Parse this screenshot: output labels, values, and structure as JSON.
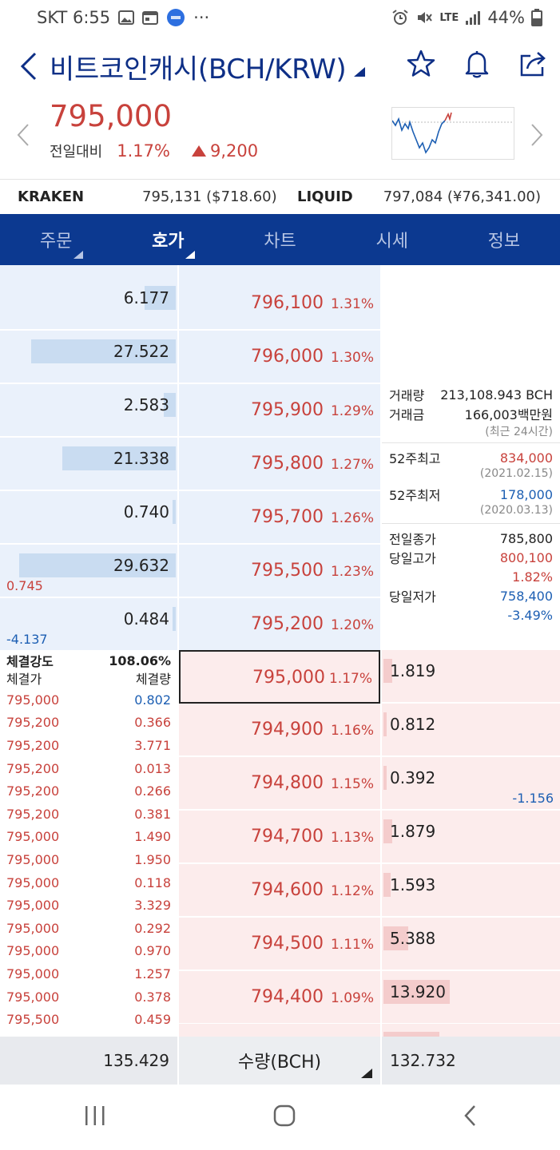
{
  "status_bar": {
    "carrier_time": "SKT 6:55",
    "dots": "···",
    "network": "LTE",
    "battery": "44%"
  },
  "title": {
    "name": "비트코인캐시(BCH/KRW)"
  },
  "price": {
    "current": "795,000",
    "change_label": "전일대비",
    "change_pct": "1.17%",
    "change_amt": "9,200"
  },
  "exchanges": [
    {
      "name": "KRAKEN",
      "value": "795,131 ($718.60)"
    },
    {
      "name": "LIQUID",
      "value": "797,084 (¥76,341.00)"
    }
  ],
  "tabs": [
    {
      "label": "주문"
    },
    {
      "label": "호가"
    },
    {
      "label": "차트"
    },
    {
      "label": "시세"
    },
    {
      "label": "정보"
    }
  ],
  "asks": [
    {
      "qty": "6.177",
      "price": "796,100",
      "pct": "1.31%",
      "fill": 0.18
    },
    {
      "qty": "27.522",
      "price": "796,000",
      "pct": "1.30%",
      "fill": 0.83
    },
    {
      "qty": "2.583",
      "price": "795,900",
      "pct": "1.29%",
      "fill": 0.07
    },
    {
      "qty": "21.338",
      "price": "795,800",
      "pct": "1.27%",
      "fill": 0.65
    },
    {
      "qty": "0.740",
      "price": "795,700",
      "pct": "1.26%",
      "fill": 0.02
    },
    {
      "qty": "29.632",
      "price": "795,500",
      "pct": "1.23%",
      "fill": 0.9,
      "diff": "0.745"
    },
    {
      "qty": "0.484",
      "price": "795,200",
      "pct": "1.20%",
      "fill": 0.02,
      "diff": "-4.137"
    }
  ],
  "bids": [
    {
      "qty": "1.819",
      "price": "795,000",
      "pct": "1.17%",
      "fill": 0.05
    },
    {
      "qty": "0.812",
      "price": "794,900",
      "pct": "1.16%",
      "fill": 0.02
    },
    {
      "qty": "0.392",
      "price": "794,800",
      "pct": "1.15%",
      "fill": 0.02,
      "diff": "-1.156"
    },
    {
      "qty": "1.879",
      "price": "794,700",
      "pct": "1.13%",
      "fill": 0.05
    },
    {
      "qty": "1.593",
      "price": "794,600",
      "pct": "1.12%",
      "fill": 0.04
    },
    {
      "qty": "5.388",
      "price": "794,500",
      "pct": "1.11%",
      "fill": 0.14
    },
    {
      "qty": "13.920",
      "price": "794,400",
      "pct": "1.09%",
      "fill": 0.38
    }
  ],
  "info": {
    "volume_label": "거래량",
    "volume": "213,108.943 BCH",
    "amount_label": "거래금",
    "amount": "166,003백만원",
    "recent_note": "(최근 24시간)",
    "high52_label": "52주최고",
    "high52": "834,000",
    "high52_date": "(2021.02.15)",
    "low52_label": "52주최저",
    "low52": "178,000",
    "low52_date": "(2020.03.13)",
    "prev_close_label": "전일종가",
    "prev_close": "785,800",
    "day_high_label": "당일고가",
    "day_high": "800,100",
    "day_high_pct": "1.82%",
    "day_low_label": "당일저가",
    "day_low": "758,400",
    "day_low_pct": "-3.49%"
  },
  "trades": {
    "strength_label": "체결강도",
    "strength": "108.06%",
    "price_header": "체결가",
    "qty_header": "체결량",
    "rows": [
      {
        "price": "795,000",
        "qty": "0.802",
        "side": "buy"
      },
      {
        "price": "795,200",
        "qty": "0.366",
        "side": "sell"
      },
      {
        "price": "795,200",
        "qty": "3.771",
        "side": "sell"
      },
      {
        "price": "795,200",
        "qty": "0.013",
        "side": "sell"
      },
      {
        "price": "795,200",
        "qty": "0.266",
        "side": "sell"
      },
      {
        "price": "795,200",
        "qty": "0.381",
        "side": "sell"
      },
      {
        "price": "795,000",
        "qty": "1.490",
        "side": "sell"
      },
      {
        "price": "795,000",
        "qty": "1.950",
        "side": "sell"
      },
      {
        "price": "795,000",
        "qty": "0.118",
        "side": "sell"
      },
      {
        "price": "795,000",
        "qty": "3.329",
        "side": "sell"
      },
      {
        "price": "795,000",
        "qty": "0.292",
        "side": "sell"
      },
      {
        "price": "795,000",
        "qty": "0.970",
        "side": "sell"
      },
      {
        "price": "795,000",
        "qty": "1.257",
        "side": "sell"
      },
      {
        "price": "795,000",
        "qty": "0.378",
        "side": "sell"
      },
      {
        "price": "795,500",
        "qty": "0.459",
        "side": "sell"
      }
    ]
  },
  "footer": {
    "ask_total": "135.429",
    "unit_label": "수량(BCH)",
    "bid_total": "132.732"
  },
  "colors": {
    "up": "#c8423c",
    "down": "#1d5fb3",
    "brand": "#0c3990"
  },
  "icons": [
    "back-icon",
    "star-icon",
    "bell-icon",
    "share-icon",
    "chevron-left-icon",
    "chevron-right-icon",
    "menu-lines-icon",
    "home-icon"
  ]
}
